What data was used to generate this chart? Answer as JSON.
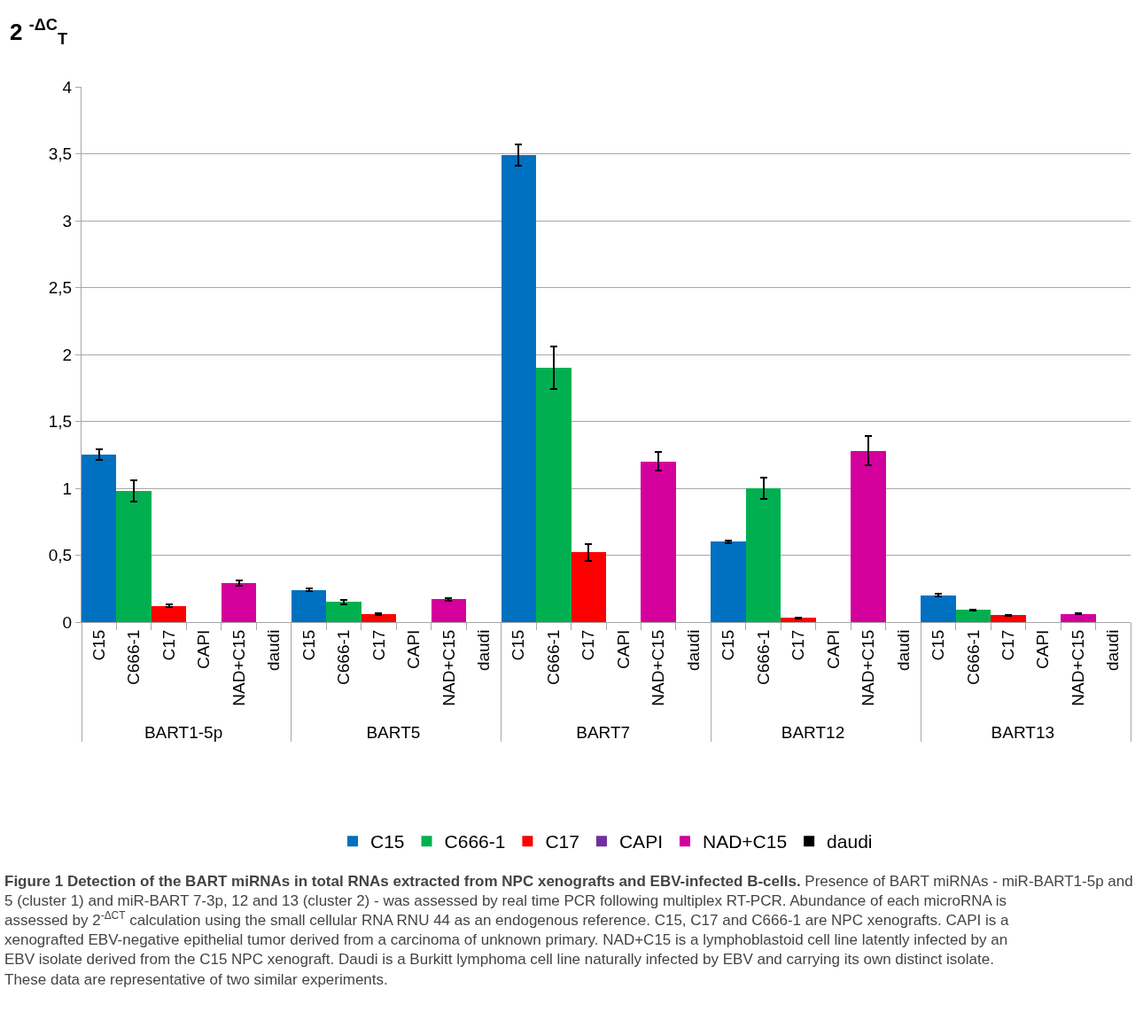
{
  "chart_data": {
    "type": "bar",
    "ylabel": "2 $^{-ΔC}$$_{T}$",
    "categories": [
      "BART1-5p",
      "BART5",
      "BART7",
      "BART12",
      "BART13"
    ],
    "series": [
      {
        "name": "C15",
        "color": "#0070c0",
        "values": [
          1.25,
          0.24,
          3.49,
          0.6,
          0.2
        ],
        "errors": [
          0.04,
          0.01,
          0.08,
          0.01,
          0.01
        ]
      },
      {
        "name": "C666-1",
        "color": "#00b050",
        "values": [
          0.98,
          0.15,
          1.9,
          1.0,
          0.09
        ],
        "errors": [
          0.08,
          0.015,
          0.16,
          0.08,
          0.005
        ]
      },
      {
        "name": "C17",
        "color": "#ff0000",
        "values": [
          0.12,
          0.06,
          0.52,
          0.03,
          0.05
        ],
        "errors": [
          0.01,
          0.005,
          0.06,
          0.003,
          0.003
        ]
      },
      {
        "name": "CAPI",
        "color": "#7030a0",
        "values": [
          0,
          0,
          0,
          0,
          0
        ]
      },
      {
        "name": "NAD+C15",
        "color": "#d4009b",
        "values": [
          0.29,
          0.17,
          1.2,
          1.28,
          0.06
        ],
        "errors": [
          0.02,
          0.01,
          0.07,
          0.11,
          0.003
        ]
      },
      {
        "name": "daudi",
        "color": "#000000",
        "values": [
          0,
          0,
          0,
          0,
          0
        ]
      }
    ],
    "ylim": [
      0,
      4
    ],
    "yticks": [
      0,
      {
        "value": 0.5,
        "label": "0,5"
      },
      1,
      {
        "value": 1.5,
        "label": "1,5"
      },
      2,
      {
        "value": 2.5,
        "label": "2,5"
      },
      3,
      {
        "value": 3.5,
        "label": "3,5"
      },
      4
    ],
    "grid": "y",
    "legend": "bottom",
    "annotations": [
      "Figure 1 Detection of the BART miRNAs in total RNAs extracted from NPC xenografts and EBV-infected B-cells.",
      "Presence of BART miRNAs - miR-BART1-5p and 5 (cluster 1) and miR-BART 7-3p, 12 and 13 (cluster 2) - was assessed by real time PCR following multiplex RT-PCR. Abundance of each microRNA is assessed by 2$^{-ΔCT}$ calculation using the small cellular RNA RNU 44 as an endogenous reference. C15, C17 and C666-1 are NPC xenografts. CAPI is a xenografted EBV-negative epithelial tumor derived from a carcinoma of unknown primary. NAD+C15 is a lymphoblastoid cell line latently infected by an EBV isolate derived from the C15 NPC xenograft. Daudi is a Burkitt lymphoma cell line naturally infected by EBV and carrying its own distinct isolate. These data are representative of two similar experiments."
    ]
  }
}
